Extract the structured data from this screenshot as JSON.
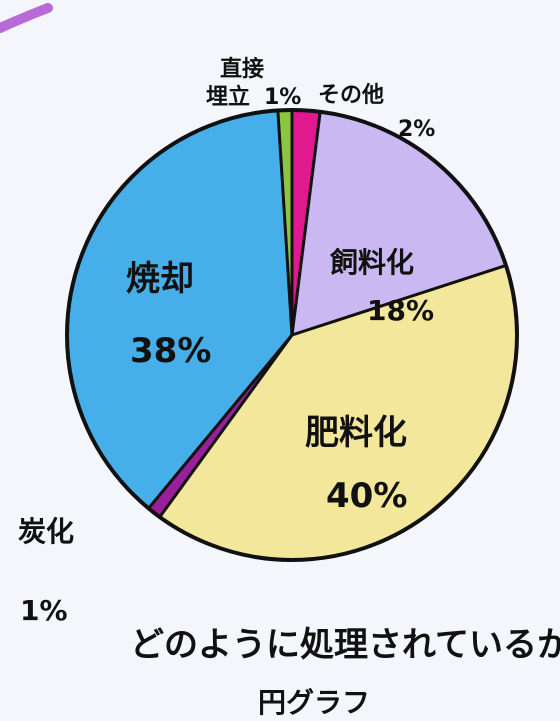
{
  "chart_data": {
    "type": "pie",
    "title": "どのように処理されているか",
    "subtitle": "円グラフ",
    "slices": [
      {
        "label_lines": [
          "その他"
        ],
        "percent_text": "2%",
        "value": 2,
        "color": "#e0198e"
      },
      {
        "label_lines": [
          "飼料化"
        ],
        "percent_text": "18%",
        "value": 18,
        "color": "#c9b8f2"
      },
      {
        "label_lines": [
          "肥料化"
        ],
        "percent_text": "40%",
        "value": 40,
        "color": "#f2e79a"
      },
      {
        "label_lines": [
          "炭化"
        ],
        "percent_text": "1%",
        "value": 1,
        "color": "#9a1f9a"
      },
      {
        "label_lines": [
          "焼却"
        ],
        "percent_text": "38%",
        "value": 38,
        "color": "#46aee8"
      },
      {
        "label_lines": [
          "直接",
          "埋立"
        ],
        "percent_text": "1%",
        "value": 1,
        "color": "#8bc640"
      }
    ]
  }
}
